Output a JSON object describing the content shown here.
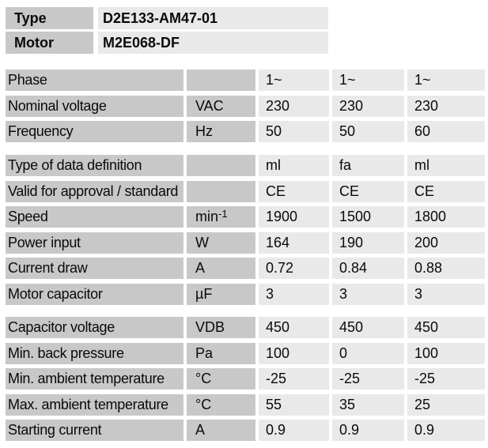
{
  "product": {
    "rows": [
      {
        "label": "Type",
        "value": "D2E133-AM47-01"
      },
      {
        "label": "Motor",
        "value": "M2E068-DF"
      }
    ]
  },
  "spec_table": {
    "sections": [
      {
        "rows": [
          {
            "label": "Phase",
            "unit": "",
            "values": [
              "1~",
              "1~",
              "1~"
            ]
          },
          {
            "label": "Nominal voltage",
            "unit": "VAC",
            "values": [
              "230",
              "230",
              "230"
            ]
          },
          {
            "label": "Frequency",
            "unit": "Hz",
            "values": [
              "50",
              "50",
              "60"
            ]
          }
        ]
      },
      {
        "rows": [
          {
            "label": "Type of data definition",
            "unit": "",
            "values": [
              "ml",
              "fa",
              "ml"
            ]
          },
          {
            "label": "Valid for approval / standard",
            "unit": "",
            "values": [
              "CE",
              "CE",
              "CE"
            ]
          },
          {
            "label": "Speed",
            "unit": "min",
            "unit_sup": "-1",
            "values": [
              "1900",
              "1500",
              "1800"
            ]
          },
          {
            "label": "Power input",
            "unit": "W",
            "values": [
              "164",
              "190",
              "200"
            ]
          },
          {
            "label": "Current draw",
            "unit": "A",
            "values": [
              "0.72",
              "0.84",
              "0.88"
            ]
          },
          {
            "label": "Motor capacitor",
            "unit": "µF",
            "values": [
              "3",
              "3",
              "3"
            ]
          }
        ]
      },
      {
        "rows": [
          {
            "label": "Capacitor voltage",
            "unit": "VDB",
            "values": [
              "450",
              "450",
              "450"
            ]
          },
          {
            "label": "Min. back pressure",
            "unit": "Pa",
            "values": [
              "100",
              "0",
              "100"
            ]
          },
          {
            "label": "Min. ambient temperature",
            "unit": "°C",
            "values": [
              "-25",
              "-25",
              "-25"
            ]
          },
          {
            "label": "Max. ambient temperature",
            "unit": "°C",
            "values": [
              "55",
              "35",
              "25"
            ]
          },
          {
            "label": "Starting current",
            "unit": "A",
            "values": [
              "0.9",
              "0.9",
              "0.9"
            ]
          }
        ]
      }
    ]
  },
  "colors": {
    "label_cell_bg": "#c8c8c8",
    "value_cell_bg": "#e9e9e9",
    "text": "#0a0a0a",
    "background": "#ffffff"
  }
}
